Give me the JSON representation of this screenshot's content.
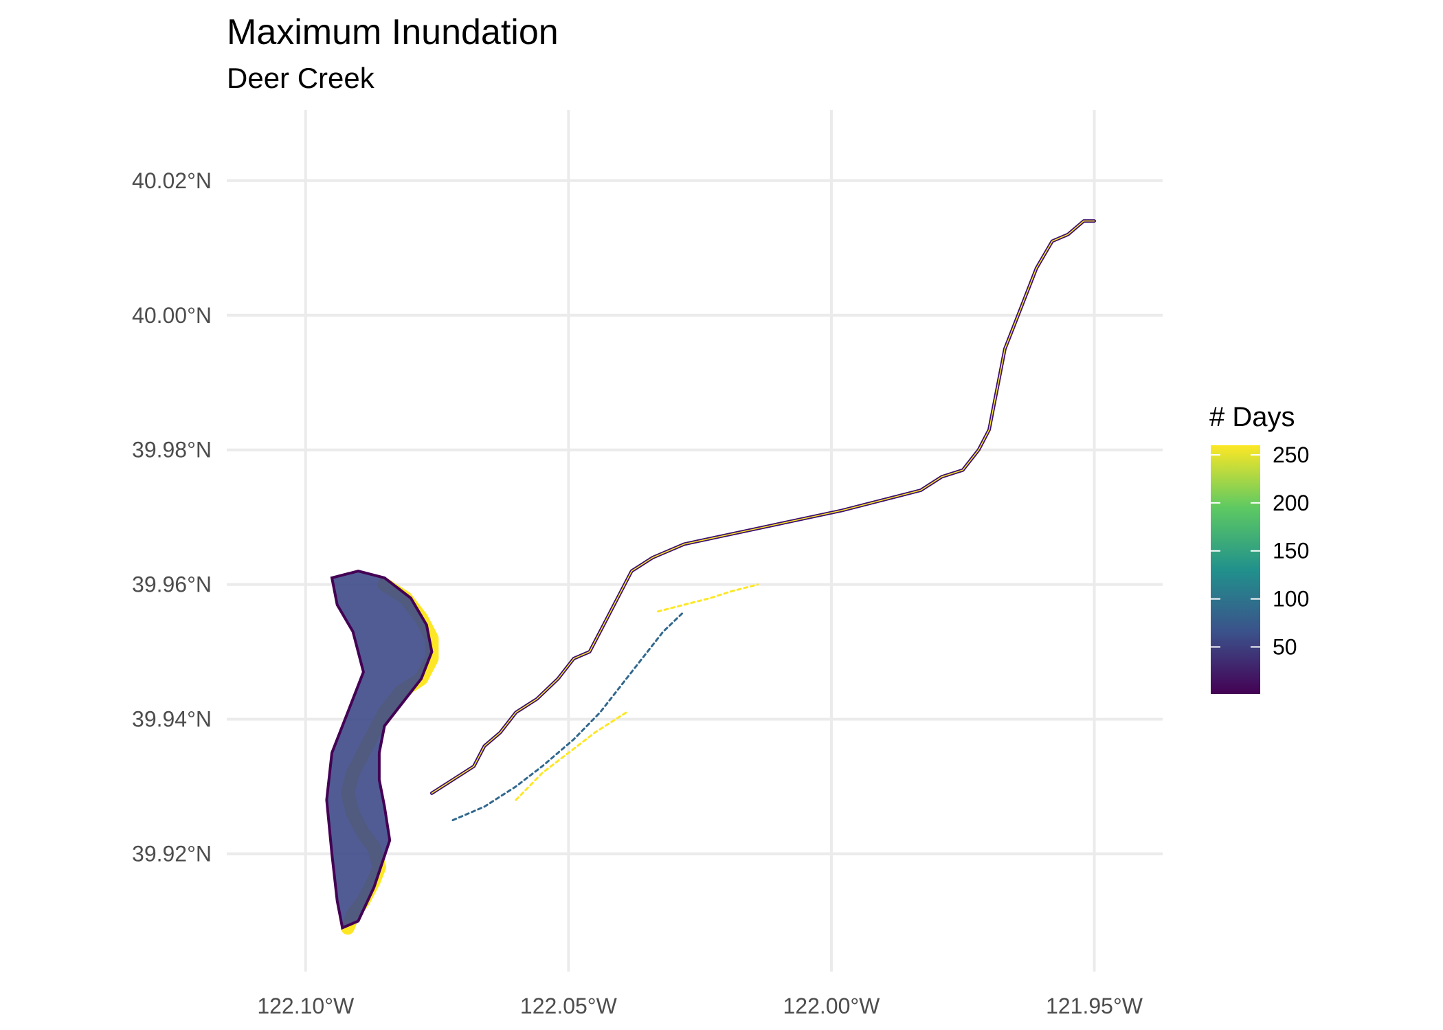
{
  "title": "Maximum Inundation",
  "subtitle": "Deer Creek",
  "map": {
    "type": "raster-map",
    "color_scale": "viridis",
    "x_axis": {
      "ticks": [
        {
          "value": -122.1,
          "label": "122.10°W"
        },
        {
          "value": -122.05,
          "label": "122.05°W"
        },
        {
          "value": -122.0,
          "label": "122.00°W"
        },
        {
          "value": -121.95,
          "label": "121.95°W"
        }
      ]
    },
    "y_axis": {
      "ticks": [
        {
          "value": 40.02,
          "label": "40.02°N"
        },
        {
          "value": 40.0,
          "label": "40.00°N"
        },
        {
          "value": 39.98,
          "label": "39.98°N"
        },
        {
          "value": 39.96,
          "label": "39.96°N"
        },
        {
          "value": 39.94,
          "label": "39.94°N"
        },
        {
          "value": 39.92,
          "label": "39.92°N"
        }
      ]
    },
    "xlim": [
      -122.115,
      -121.937
    ],
    "ylim": [
      39.9025,
      40.0305
    ],
    "grid": true,
    "features": [
      {
        "name": "main-channel",
        "color": "#3b0f70",
        "points": [
          [
            -122.076,
            39.929
          ],
          [
            -122.072,
            39.931
          ],
          [
            -122.068,
            39.933
          ],
          [
            -122.066,
            39.936
          ],
          [
            -122.063,
            39.938
          ],
          [
            -122.06,
            39.941
          ],
          [
            -122.056,
            39.943
          ],
          [
            -122.052,
            39.946
          ],
          [
            -122.049,
            39.949
          ],
          [
            -122.046,
            39.95
          ],
          [
            -122.044,
            39.953
          ],
          [
            -122.042,
            39.956
          ],
          [
            -122.04,
            39.959
          ],
          [
            -122.038,
            39.962
          ],
          [
            -122.034,
            39.964
          ],
          [
            -122.028,
            39.966
          ],
          [
            -122.022,
            39.967
          ],
          [
            -122.016,
            39.968
          ],
          [
            -122.01,
            39.969
          ],
          [
            -122.004,
            39.97
          ],
          [
            -121.998,
            39.971
          ],
          [
            -121.993,
            39.972
          ],
          [
            -121.988,
            39.973
          ],
          [
            -121.983,
            39.974
          ],
          [
            -121.979,
            39.976
          ],
          [
            -121.975,
            39.977
          ],
          [
            -121.972,
            39.98
          ],
          [
            -121.97,
            39.983
          ],
          [
            -121.969,
            39.987
          ],
          [
            -121.968,
            39.991
          ],
          [
            -121.967,
            39.995
          ],
          [
            -121.965,
            39.999
          ],
          [
            -121.963,
            40.003
          ],
          [
            -121.961,
            40.007
          ],
          [
            -121.958,
            40.011
          ],
          [
            -121.955,
            40.012
          ],
          [
            -121.952,
            40.014
          ],
          [
            -121.95,
            40.014
          ]
        ]
      },
      {
        "name": "bypass-channel",
        "color": "#31688e",
        "points": [
          [
            -122.072,
            39.925
          ],
          [
            -122.066,
            39.927
          ],
          [
            -122.06,
            39.93
          ],
          [
            -122.055,
            39.933
          ],
          [
            -122.049,
            39.937
          ],
          [
            -122.044,
            39.941
          ],
          [
            -122.04,
            39.945
          ],
          [
            -122.036,
            39.949
          ],
          [
            -122.032,
            39.953
          ],
          [
            -122.028,
            39.956
          ]
        ]
      },
      {
        "name": "yellow-channel-north",
        "color": "#fde725",
        "points": [
          [
            -122.033,
            39.956
          ],
          [
            -122.028,
            39.957
          ],
          [
            -122.023,
            39.958
          ],
          [
            -122.019,
            39.959
          ],
          [
            -122.014,
            39.96
          ]
        ]
      },
      {
        "name": "yellow-channel-south",
        "color": "#fde725",
        "points": [
          [
            -122.06,
            39.928
          ],
          [
            -122.055,
            39.932
          ],
          [
            -122.05,
            39.935
          ],
          [
            -122.045,
            39.938
          ],
          [
            -122.039,
            39.941
          ]
        ]
      },
      {
        "name": "river-loop",
        "color": "#fde725",
        "points": [
          [
            -122.085,
            39.96
          ],
          [
            -122.081,
            39.958
          ],
          [
            -122.078,
            39.955
          ],
          [
            -122.076,
            39.952
          ],
          [
            -122.076,
            39.949
          ],
          [
            -122.078,
            39.946
          ],
          [
            -122.082,
            39.944
          ],
          [
            -122.085,
            39.941
          ],
          [
            -122.087,
            39.938
          ],
          [
            -122.089,
            39.935
          ],
          [
            -122.091,
            39.932
          ],
          [
            -122.092,
            39.929
          ],
          [
            -122.091,
            39.926
          ],
          [
            -122.089,
            39.923
          ],
          [
            -122.087,
            39.921
          ],
          [
            -122.086,
            39.918
          ],
          [
            -122.087,
            39.916
          ],
          [
            -122.089,
            39.913
          ],
          [
            -122.091,
            39.911
          ],
          [
            -122.092,
            39.909
          ]
        ]
      },
      {
        "name": "floodplain-fill",
        "color": "#3e4a89",
        "points": [
          [
            -122.095,
            39.961
          ],
          [
            -122.09,
            39.962
          ],
          [
            -122.085,
            39.961
          ],
          [
            -122.08,
            39.958
          ],
          [
            -122.077,
            39.954
          ],
          [
            -122.076,
            39.95
          ],
          [
            -122.078,
            39.946
          ],
          [
            -122.082,
            39.942
          ],
          [
            -122.085,
            39.939
          ],
          [
            -122.086,
            39.935
          ],
          [
            -122.086,
            39.931
          ],
          [
            -122.085,
            39.927
          ],
          [
            -122.084,
            39.922
          ],
          [
            -122.087,
            39.915
          ],
          [
            -122.09,
            39.91
          ],
          [
            -122.093,
            39.909
          ],
          [
            -122.094,
            39.913
          ],
          [
            -122.095,
            39.92
          ],
          [
            -122.096,
            39.928
          ],
          [
            -122.095,
            39.935
          ],
          [
            -122.092,
            39.941
          ],
          [
            -122.089,
            39.947
          ],
          [
            -122.091,
            39.953
          ],
          [
            -122.094,
            39.957
          ]
        ]
      }
    ]
  },
  "legend": {
    "title": "# Days",
    "placement": "right",
    "min": 1,
    "max": 260,
    "breaks": [
      {
        "value": 50,
        "label": "50"
      },
      {
        "value": 100,
        "label": "100"
      },
      {
        "value": 150,
        "label": "150"
      },
      {
        "value": 200,
        "label": "200"
      },
      {
        "value": 250,
        "label": "250"
      }
    ],
    "colors": [
      "#440154",
      "#3b528b",
      "#21918c",
      "#5ec962",
      "#fde725"
    ]
  }
}
